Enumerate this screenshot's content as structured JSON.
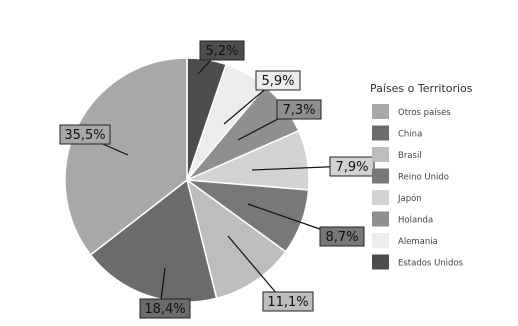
{
  "chart_data": {
    "type": "pie",
    "legend_title": "Países o Territorios",
    "legend_position": "right",
    "slices": [
      {
        "label": "Estados Unidos",
        "value": 5.2,
        "display": "5,2%",
        "color": "#4d4d4d"
      },
      {
        "label": "Alemania",
        "value": 5.9,
        "display": "5,9%",
        "color": "#ececec"
      },
      {
        "label": "Holanda",
        "value": 7.3,
        "display": "7,3%",
        "color": "#8f8f8f"
      },
      {
        "label": "Japón",
        "value": 7.9,
        "display": "7,9%",
        "color": "#d2d2d2"
      },
      {
        "label": "Reino Unido",
        "value": 8.7,
        "display": "8,7%",
        "color": "#787878"
      },
      {
        "label": "Brasil",
        "value": 11.1,
        "display": "11,1%",
        "color": "#bdbdbd"
      },
      {
        "label": "China",
        "value": 18.4,
        "display": "18,4%",
        "color": "#6b6b6b"
      },
      {
        "label": "Otros países",
        "value": 35.5,
        "display": "35,5%",
        "color": "#a8a8a8"
      }
    ],
    "legend_order": [
      "Otros países",
      "China",
      "Brasil",
      "Reino Unido",
      "Japón",
      "Holanda",
      "Alemania",
      "Estados Unidos"
    ]
  }
}
